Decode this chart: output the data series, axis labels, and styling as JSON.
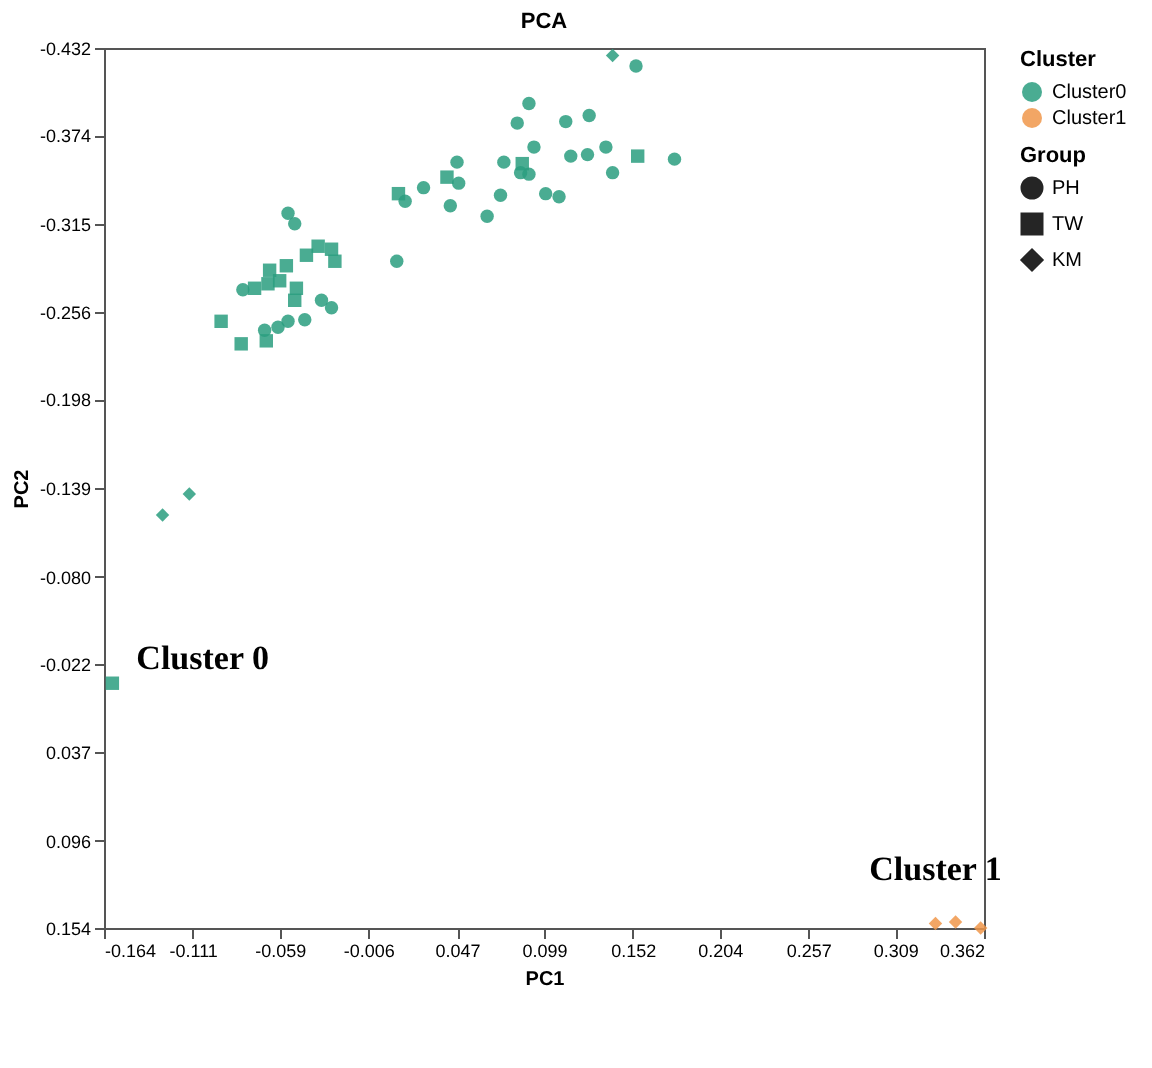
{
  "chart_data": {
    "type": "scatter",
    "title": "PCA",
    "xlabel": "PC1",
    "ylabel": "PC2",
    "xlim": [
      -0.164,
      0.362
    ],
    "xticks": [
      -0.164,
      -0.111,
      -0.059,
      -0.006,
      0.047,
      0.099,
      0.152,
      0.204,
      0.257,
      0.309,
      0.362
    ],
    "ylim": [
      0.154,
      -0.432
    ],
    "yticks": [
      -0.432,
      -0.374,
      -0.315,
      -0.256,
      -0.198,
      -0.139,
      {
        "value": -0.08,
        "label": "-0.080"
      },
      -0.022,
      0.037,
      0.096,
      0.154
    ],
    "grid": false,
    "legend": "top right",
    "legend_title": [
      "Cluster",
      "Group"
    ],
    "series": [
      {
        "name": "PH",
        "marker": "circle",
        "x": [
          -0.054,
          -0.05,
          -0.081,
          -0.068,
          -0.06,
          -0.054,
          -0.044,
          -0.034,
          -0.028,
          0.011,
          0.016,
          0.027,
          0.048,
          0.047,
          0.043,
          0.065,
          0.073,
          0.075,
          0.083,
          0.09,
          0.093,
          0.09,
          0.085,
          0.1,
          0.108,
          0.112,
          0.126,
          0.115,
          0.125,
          0.136,
          0.14,
          0.177,
          0.154
        ],
        "values": [
          -0.322,
          -0.315,
          -0.271,
          -0.244,
          -0.246,
          -0.25,
          -0.251,
          -0.264,
          -0.259,
          -0.29,
          -0.33,
          -0.339,
          -0.342,
          -0.356,
          -0.327,
          -0.32,
          -0.334,
          -0.356,
          -0.382,
          -0.395,
          -0.366,
          -0.348,
          -0.349,
          -0.335,
          -0.333,
          -0.383,
          -0.387,
          -0.36,
          -0.361,
          -0.366,
          -0.349,
          -0.358,
          -0.42
        ],
        "colors": [
          "#2a9d7f",
          "#2a9d7f",
          "#2a9d7f",
          "#2a9d7f",
          "#2a9d7f",
          "#2a9d7f",
          "#2a9d7f",
          "#2a9d7f",
          "#2a9d7f",
          "#2a9d7f",
          "#2a9d7f",
          "#2a9d7f",
          "#2a9d7f",
          "#2a9d7f",
          "#2a9d7f",
          "#2a9d7f",
          "#2a9d7f",
          "#2a9d7f",
          "#2a9d7f",
          "#2a9d7f",
          "#2a9d7f",
          "#2a9d7f",
          "#2a9d7f",
          "#2a9d7f",
          "#2a9d7f",
          "#2a9d7f",
          "#2a9d7f",
          "#2a9d7f",
          "#2a9d7f",
          "#2a9d7f",
          "#2a9d7f",
          "#2a9d7f",
          "#2a9d7f"
        ]
      },
      {
        "name": "TW",
        "marker": "square",
        "x": [
          -0.036,
          -0.028,
          -0.026,
          -0.043,
          -0.055,
          -0.065,
          -0.074,
          -0.066,
          -0.059,
          -0.049,
          -0.05,
          -0.094,
          -0.082,
          -0.067,
          0.041,
          0.012,
          0.086,
          0.155,
          -0.159
        ],
        "values": [
          -0.3,
          -0.298,
          -0.29,
          -0.294,
          -0.287,
          -0.284,
          -0.272,
          -0.275,
          -0.277,
          -0.272,
          -0.264,
          -0.25,
          -0.235,
          -0.237,
          -0.346,
          -0.335,
          -0.355,
          -0.36,
          -0.009
        ],
        "colors": [
          "#2a9d7f",
          "#2a9d7f",
          "#2a9d7f",
          "#2a9d7f",
          "#2a9d7f",
          "#2a9d7f",
          "#2a9d7f",
          "#2a9d7f",
          "#2a9d7f",
          "#2a9d7f",
          "#2a9d7f",
          "#2a9d7f",
          "#2a9d7f",
          "#2a9d7f",
          "#2a9d7f",
          "#2a9d7f",
          "#2a9d7f",
          "#2a9d7f",
          "#2a9d7f"
        ]
      },
      {
        "name": "KM",
        "marker": "diamond",
        "x": [
          -0.113,
          -0.129,
          0.14,
          0.333,
          0.345,
          0.36
        ],
        "values": [
          -0.135,
          -0.121,
          -0.427,
          0.151,
          0.15,
          0.154
        ],
        "colors": [
          "#2a9d7f",
          "#2a9d7f",
          "#2a9d7f",
          "#f0964a",
          "#f0964a",
          "#f0964a"
        ]
      }
    ],
    "annotations": [
      {
        "text": "Cluster 0",
        "x": -0.159,
        "y": -0.009
      },
      {
        "text": "Cluster 1",
        "x": 0.345,
        "y": 0.15
      },
      "Cluster0",
      "Cluster1"
    ]
  }
}
